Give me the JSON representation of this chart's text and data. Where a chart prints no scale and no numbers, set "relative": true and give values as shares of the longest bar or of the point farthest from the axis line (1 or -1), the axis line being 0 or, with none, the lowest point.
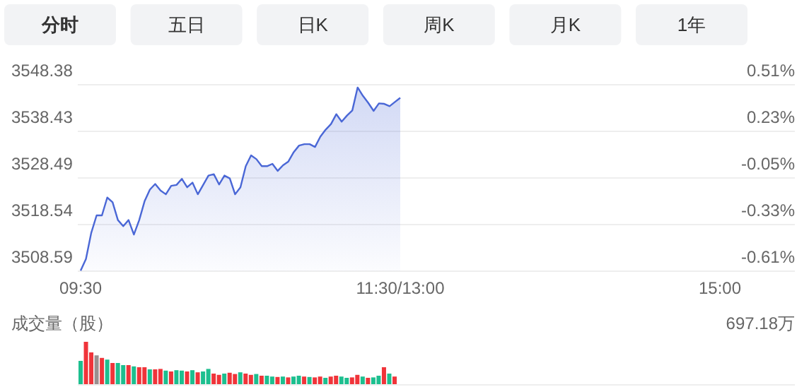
{
  "chart_data": [
    {
      "type": "area",
      "annotations": [
        "分时",
        "五日",
        "日K",
        "周K",
        "月K",
        "1年"
      ],
      "categories": [
        "09:30",
        null,
        null,
        null,
        null,
        null,
        null,
        null,
        null,
        null,
        null,
        null,
        null,
        null,
        null,
        null,
        null,
        null,
        null,
        null,
        null,
        null,
        null,
        null,
        null,
        null,
        null,
        null,
        null,
        null,
        null,
        null,
        null,
        null,
        null,
        null,
        null,
        null,
        null,
        null,
        null,
        null,
        null,
        null,
        null,
        null,
        null,
        null,
        null,
        null,
        null,
        null,
        null,
        null,
        null,
        null,
        null,
        null,
        null,
        null,
        "11:30/13:00",
        null,
        null,
        null,
        null,
        null,
        null,
        null,
        null,
        null,
        null,
        null,
        null,
        null,
        null,
        null,
        null,
        null,
        null,
        null,
        null,
        null,
        null,
        null,
        null,
        null,
        null,
        null,
        null,
        null,
        null,
        null,
        null,
        null,
        null,
        null,
        null,
        null,
        null,
        null,
        null,
        null,
        null,
        null,
        null,
        null,
        null,
        null,
        null,
        null,
        null,
        null,
        null,
        null,
        null,
        null,
        null,
        null,
        null,
        null,
        "15:00"
      ],
      "ylim": [
        3508.59,
        3548.38
      ],
      "yticks": [
        3508.59,
        3518.54,
        3528.49,
        3538.43,
        3548.38
      ],
      "y2lim": [
        -0.61,
        0.51
      ],
      "y2ticks": [
        {
          "value": -0.61,
          "label": "-0.61%"
        },
        {
          "value": -0.33,
          "label": "-0.33%"
        },
        {
          "value": -0.05,
          "label": "-0.05%"
        },
        {
          "value": 0.23,
          "label": "0.23%"
        },
        {
          "value": 0.51,
          "label": "0.51%"
        }
      ],
      "grid": "y",
      "series": [
        {
          "color": "#4a67d6",
          "values": [
            3508.7,
            3511.2,
            3516.8,
            3520.5,
            3520.5,
            3524.3,
            3523.3,
            3519.5,
            3518.2,
            3519.5,
            3516.4,
            3519.5,
            3523.5,
            3526.0,
            3527.2,
            3525.8,
            3525.0,
            3526.8,
            3527.0,
            3528.3,
            3526.5,
            3527.5,
            3525.0,
            3527.0,
            3529.0,
            3529.3,
            3527.1,
            3529.0,
            3528.4,
            3525.0,
            3526.5,
            3531.0,
            3533.3,
            3532.5,
            3531.0,
            3531.0,
            3531.5,
            3530.0,
            3531.2,
            3532.0,
            3534.0,
            3535.4,
            3535.7,
            3535.7,
            3535.1,
            3537.3,
            3538.8,
            3540.0,
            3542.1,
            3540.5,
            3541.8,
            3542.9,
            3547.8,
            3546.0,
            3544.5,
            3542.8,
            3544.4,
            3544.3,
            3543.8,
            3544.7,
            3545.6,
            null,
            null,
            null,
            null,
            null,
            null,
            null,
            null,
            null,
            null,
            null,
            null,
            null,
            null,
            null,
            null,
            null,
            null,
            null,
            null,
            null,
            null,
            null,
            null,
            null,
            null,
            null,
            null,
            null,
            null,
            null,
            null,
            null,
            null,
            null,
            null,
            null,
            null,
            null,
            null,
            null,
            null,
            null,
            null,
            null,
            null,
            null,
            null,
            null,
            null,
            null,
            null,
            null,
            null,
            null,
            null,
            null,
            null,
            null,
            null
          ]
        }
      ]
    },
    {
      "type": "bar",
      "relative": true,
      "title": "成交量（股）",
      "annotations": [
        "697.18万"
      ],
      "categories": [
        null,
        null,
        null,
        null,
        null,
        null,
        null,
        null,
        null,
        null,
        null,
        null,
        null,
        null,
        null,
        null,
        null,
        null,
        null,
        null,
        null,
        null,
        null,
        null,
        null,
        null,
        null,
        null,
        null,
        null,
        null,
        null,
        null,
        null,
        null,
        null,
        null,
        null,
        null,
        null,
        null,
        null,
        null,
        null,
        null,
        null,
        null,
        null,
        null,
        null,
        null,
        null,
        null,
        null,
        null,
        null,
        null,
        null,
        null,
        null
      ],
      "values": [
        0.55,
        1,
        0.75,
        0.68,
        0.62,
        0.58,
        0.5,
        0.5,
        0.45,
        0.45,
        0.42,
        0.4,
        0.4,
        0.35,
        0.35,
        0.36,
        0.32,
        0.3,
        0.33,
        0.32,
        0.3,
        0.33,
        0.28,
        0.3,
        0.36,
        0.25,
        0.22,
        0.25,
        0.27,
        0.24,
        0.28,
        0.25,
        0.22,
        0.24,
        0.2,
        0.2,
        0.18,
        0.17,
        0.18,
        0.16,
        0.18,
        0.2,
        0.18,
        0.17,
        0.16,
        0.18,
        0.15,
        0.18,
        0.2,
        0.18,
        0.15,
        0.16,
        0.22,
        0.18,
        0.15,
        0.16,
        0.2,
        0.4,
        0.25,
        0.18
      ],
      "colors": [
        "#1dbf8f",
        "#f0343a",
        "#f0343a",
        "#9a8f8f",
        "#f0343a",
        "#1dbf8f",
        "#f0343a",
        "#1dbf8f",
        "#1dbf8f",
        "#f0343a",
        "#1dbf8f",
        "#f0343a",
        "#f0343a",
        "#1dbf8f",
        "#f0343a",
        "#f0343a",
        "#1dbf8f",
        "#f0343a",
        "#1dbf8f",
        "#1dbf8f",
        "#f0343a",
        "#1dbf8f",
        "#f0343a",
        "#1dbf8f",
        "#1dbf8f",
        "#f0343a",
        "#f0343a",
        "#1dbf8f",
        "#f0343a",
        "#f0343a",
        "#1dbf8f",
        "#f0343a",
        "#f0343a",
        "#1dbf8f",
        "#f0343a",
        "#1dbf8f",
        "#1dbf8f",
        "#f0343a",
        "#1dbf8f",
        "#f0343a",
        "#1dbf8f",
        "#1dbf8f",
        "#f0343a",
        "#1dbf8f",
        "#f0343a",
        "#f0343a",
        "#1dbf8f",
        "#f0343a",
        "#f0343a",
        "#1dbf8f",
        "#1dbf8f",
        "#f0343a",
        "#f0343a",
        "#1dbf8f",
        "#f0343a",
        "#1dbf8f",
        "#1dbf8f",
        "#f0343a",
        "#1dbf8f",
        "#f0343a"
      ]
    }
  ]
}
